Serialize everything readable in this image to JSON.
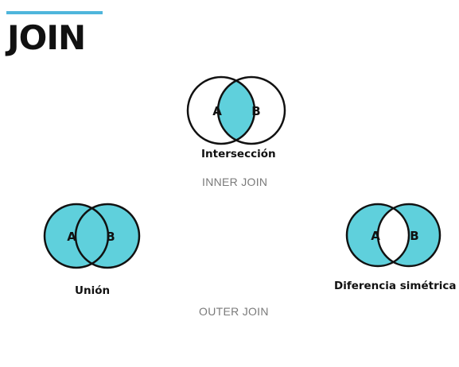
{
  "slide": {
    "title": "JOIN",
    "accent_color": "#4fb6dc"
  },
  "venn": {
    "fill_color": "#5fd0dc",
    "stroke_color": "#111111",
    "set_a_label": "A",
    "set_b_label": "B"
  },
  "intersection": {
    "caption": "Intersección",
    "group_label": "INNER JOIN"
  },
  "union": {
    "caption": "Unión"
  },
  "symmetric_difference": {
    "caption": "Diferencia simétrica"
  },
  "outer": {
    "group_label": "OUTER JOIN"
  }
}
